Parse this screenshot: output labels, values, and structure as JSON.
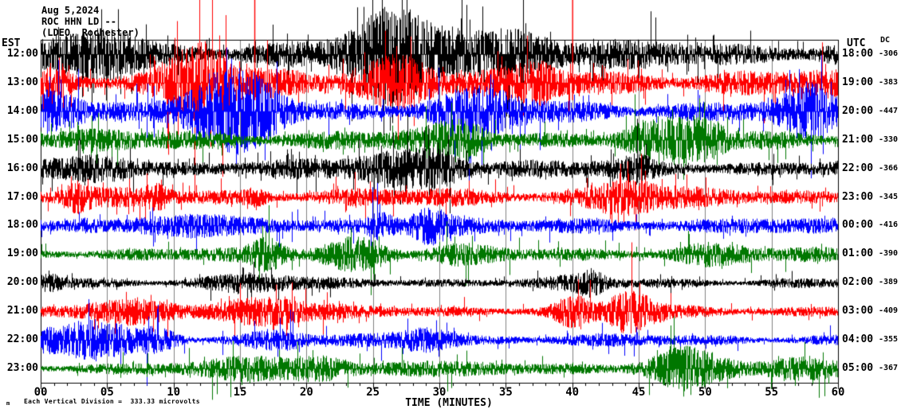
{
  "header": {
    "date": "Aug 5,2024",
    "station": "ROC HHN LD --",
    "location": "(LDEO, Rochester)"
  },
  "left_axis": {
    "label": "EST"
  },
  "right_axis": {
    "label": "UTC",
    "dc_label": "DC"
  },
  "x_axis": {
    "title": "TIME (MINUTES)",
    "tick_labels": [
      "00",
      "05",
      "10",
      "15",
      "20",
      "25",
      "30",
      "35",
      "40",
      "45",
      "50",
      "55",
      "60"
    ],
    "minutes_total": 60,
    "minor_tick_every_min": 1,
    "major_tick_every_min": 5
  },
  "footer": {
    "marker": "m",
    "text": "Each Vertical Division =  333.33 microvolts"
  },
  "chart_data": {
    "type": "line",
    "subtype": "helicorder-seismogram",
    "title": "ROC HHN LD -- (LDEO, Rochester) Aug 5,2024",
    "xlabel": "TIME (MINUTES)",
    "x_range_minutes": [
      0,
      60
    ],
    "grid_interval_minutes": 5,
    "grid_on": true,
    "grid_color": "#808080",
    "vertical_division_microvolts": 333.33,
    "trace_colors_cycle": [
      "#000000",
      "#ff0000",
      "#0000ff",
      "#007700"
    ],
    "rows": [
      {
        "est": "12:00",
        "utc": "18:00",
        "dc": "-306",
        "color": "#000000",
        "amp": 13,
        "spike": 2.2,
        "rate": 0.06,
        "bursts": 5,
        "seed": 11
      },
      {
        "est": "13:00",
        "utc": "19:00",
        "dc": "-383",
        "color": "#ff0000",
        "amp": 13,
        "spike": 2.4,
        "rate": 0.06,
        "bursts": 5,
        "seed": 22,
        "tall_spikes_min": [
          16.1,
          40.02
        ]
      },
      {
        "est": "14:00",
        "utc": "20:00",
        "dc": "-447",
        "color": "#0000ff",
        "amp": 11,
        "spike": 2.2,
        "rate": 0.05,
        "bursts": 5,
        "seed": 33
      },
      {
        "est": "15:00",
        "utc": "21:00",
        "dc": "-330",
        "color": "#007700",
        "amp": 10,
        "spike": 2.0,
        "rate": 0.05,
        "bursts": 4,
        "seed": 44
      },
      {
        "est": "16:00",
        "utc": "22:00",
        "dc": "-366",
        "color": "#000000",
        "amp": 8.5,
        "spike": 2.0,
        "rate": 0.05,
        "bursts": 4,
        "seed": 55
      },
      {
        "est": "17:00",
        "utc": "23:00",
        "dc": "-345",
        "color": "#ff0000",
        "amp": 8.5,
        "spike": 2.2,
        "rate": 0.05,
        "bursts": 4,
        "seed": 66
      },
      {
        "est": "18:00",
        "utc": "00:00",
        "dc": "-416",
        "color": "#0000ff",
        "amp": 6.5,
        "spike": 2.6,
        "rate": 0.04,
        "bursts": 6,
        "seed": 77
      },
      {
        "est": "19:00",
        "utc": "01:00",
        "dc": "-390",
        "color": "#007700",
        "amp": 6.5,
        "spike": 2.2,
        "rate": 0.04,
        "bursts": 5,
        "seed": 88
      },
      {
        "est": "20:00",
        "utc": "02:00",
        "dc": "-389",
        "color": "#000000",
        "amp": 5,
        "spike": 1.8,
        "rate": 0.03,
        "bursts": 4,
        "seed": 99
      },
      {
        "est": "21:00",
        "utc": "03:00",
        "dc": "-409",
        "color": "#ff0000",
        "amp": 6,
        "spike": 2.4,
        "rate": 0.04,
        "bursts": 6,
        "seed": 110
      },
      {
        "est": "22:00",
        "utc": "04:00",
        "dc": "-355",
        "color": "#0000ff",
        "amp": 5.5,
        "spike": 2.8,
        "rate": 0.04,
        "bursts": 6,
        "seed": 121
      },
      {
        "est": "23:00",
        "utc": "05:00",
        "dc": "-367",
        "color": "#007700",
        "amp": 6,
        "spike": 2.4,
        "rate": 0.04,
        "bursts": 6,
        "seed": 132
      }
    ]
  }
}
